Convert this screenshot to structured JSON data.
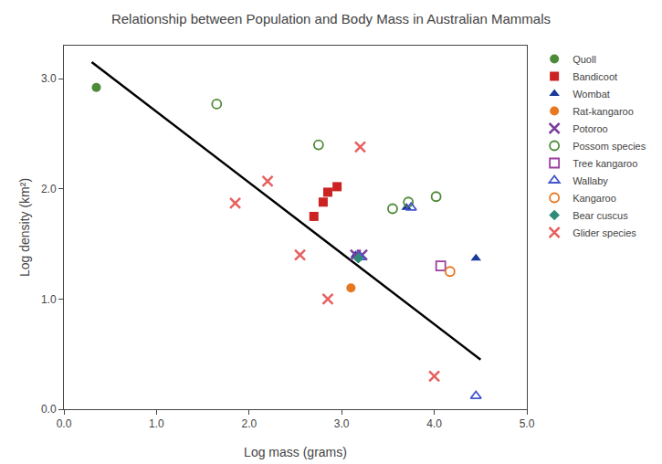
{
  "chart_data": {
    "type": "scatter",
    "title": "Relationship between Population and Body Mass in Australian Mammals",
    "xlabel": "Log mass (grams)",
    "ylabel": "Log density (km²)",
    "xlim": [
      0.0,
      5.0
    ],
    "ylim": [
      0.0,
      3.3
    ],
    "xticks": [
      {
        "value": 0.0,
        "label": "0.0"
      },
      {
        "value": 1.0,
        "label": "1.0"
      },
      {
        "value": 2.0,
        "label": "2.0"
      },
      {
        "value": 3.0,
        "label": "3.0"
      },
      {
        "value": 4.0,
        "label": "4.0"
      },
      {
        "value": 5.0,
        "label": "5.0"
      }
    ],
    "yticks": [
      {
        "value": 0.0,
        "label": "0.0"
      },
      {
        "value": 1.0,
        "label": "1.0"
      },
      {
        "value": 2.0,
        "label": "2.0"
      },
      {
        "value": 3.0,
        "label": "3.0"
      }
    ],
    "grid": false,
    "legend": "right",
    "series": [
      {
        "type": "line",
        "color": "#000000",
        "line_style": "solid",
        "x": [
          0.3,
          4.5
        ],
        "values": [
          3.15,
          0.45
        ]
      },
      {
        "name": "Quoll",
        "color": "#4e8b38",
        "marker": "circle",
        "x": [
          0.35
        ],
        "values": [
          2.92
        ]
      },
      {
        "name": "Bandicoot",
        "color": "#cc2222",
        "marker": "square",
        "x": [
          2.7,
          2.8,
          2.85,
          2.95
        ],
        "values": [
          1.75,
          1.88,
          1.97,
          2.02
        ]
      },
      {
        "name": "Wombat",
        "color": "#1a3a99",
        "marker": "triangle-up",
        "x": [
          3.15,
          3.7,
          4.45
        ],
        "values": [
          1.4,
          1.83,
          1.37
        ]
      },
      {
        "name": "Rat-kangaroo",
        "color": "#e87820",
        "marker": "circle",
        "x": [
          3.1
        ],
        "values": [
          1.1
        ]
      },
      {
        "name": "Potoroo",
        "color": "#7b3fa0",
        "marker": "x",
        "x": [
          3.15,
          3.22
        ],
        "values": [
          1.4,
          1.4
        ]
      },
      {
        "name": "Possom species",
        "color": "#4e8b38",
        "marker": "circle-open",
        "x": [
          1.65,
          2.75,
          3.55,
          3.72,
          4.02
        ],
        "values": [
          2.77,
          2.4,
          1.82,
          1.88,
          1.93
        ]
      },
      {
        "name": "Tree kangaroo",
        "color": "#9b3fa0",
        "marker": "square-open",
        "x": [
          4.07
        ],
        "values": [
          1.3
        ]
      },
      {
        "name": "Wallaby",
        "color": "#4455cc",
        "marker": "triangle-up-open",
        "x": [
          3.2,
          3.75,
          4.45
        ],
        "values": [
          1.38,
          1.83,
          0.12
        ]
      },
      {
        "name": "Kangaroo",
        "color": "#e87820",
        "marker": "circle-open",
        "x": [
          4.17
        ],
        "values": [
          1.25
        ]
      },
      {
        "name": "Bear cuscus",
        "color": "#2e8b7a",
        "marker": "diamond",
        "x": [
          3.18
        ],
        "values": [
          1.37
        ]
      },
      {
        "name": "Glider species",
        "color": "#e86060",
        "marker": "x",
        "x": [
          1.85,
          2.2,
          2.55,
          2.85,
          3.2,
          4.0
        ],
        "values": [
          1.87,
          2.07,
          1.4,
          1.0,
          2.38,
          0.3
        ]
      }
    ]
  }
}
